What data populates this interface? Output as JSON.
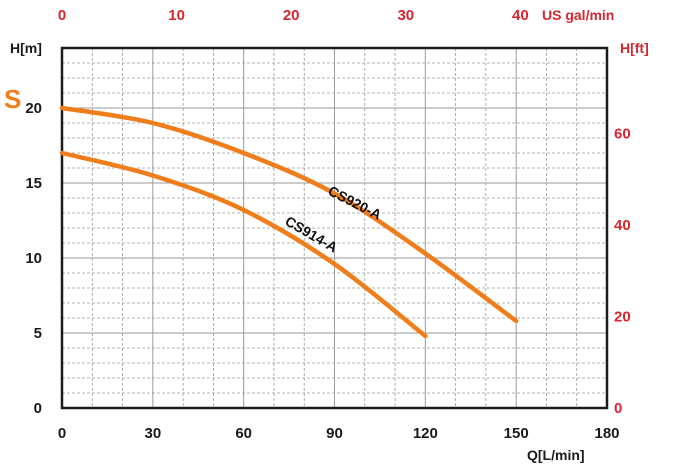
{
  "brand_fragment": "S",
  "chart_data": {
    "type": "line",
    "title": "",
    "xlabel": "Q[L/min]",
    "ylabel": "H[m]",
    "secondary_xlabel": "US gal/min",
    "secondary_ylabel": "H[ft]",
    "xlim": [
      0,
      180
    ],
    "ylim": [
      0,
      24
    ],
    "x_ticks": [
      "0",
      "30",
      "60",
      "90",
      "120",
      "150",
      "180"
    ],
    "y_ticks": [
      "0",
      "5",
      "10",
      "15",
      "20"
    ],
    "top_ticks": [
      "0",
      "10",
      "20",
      "30",
      "40"
    ],
    "right_ticks": [
      "0",
      "20",
      "40",
      "60"
    ],
    "grid": true,
    "colors": {
      "curve": "#ef7d1a",
      "secondary_axis": "#d7262e",
      "primary_axis": "#1a1a1a"
    },
    "series": [
      {
        "name": "CS920-A",
        "x": [
          0,
          30,
          60,
          90,
          120,
          150
        ],
        "y": [
          20,
          19,
          17,
          14.3,
          10.3,
          5.8
        ]
      },
      {
        "name": "CS914-A",
        "x": [
          0,
          30,
          60,
          90,
          120
        ],
        "y": [
          17,
          15.5,
          13.2,
          9.6,
          4.8
        ]
      }
    ]
  }
}
